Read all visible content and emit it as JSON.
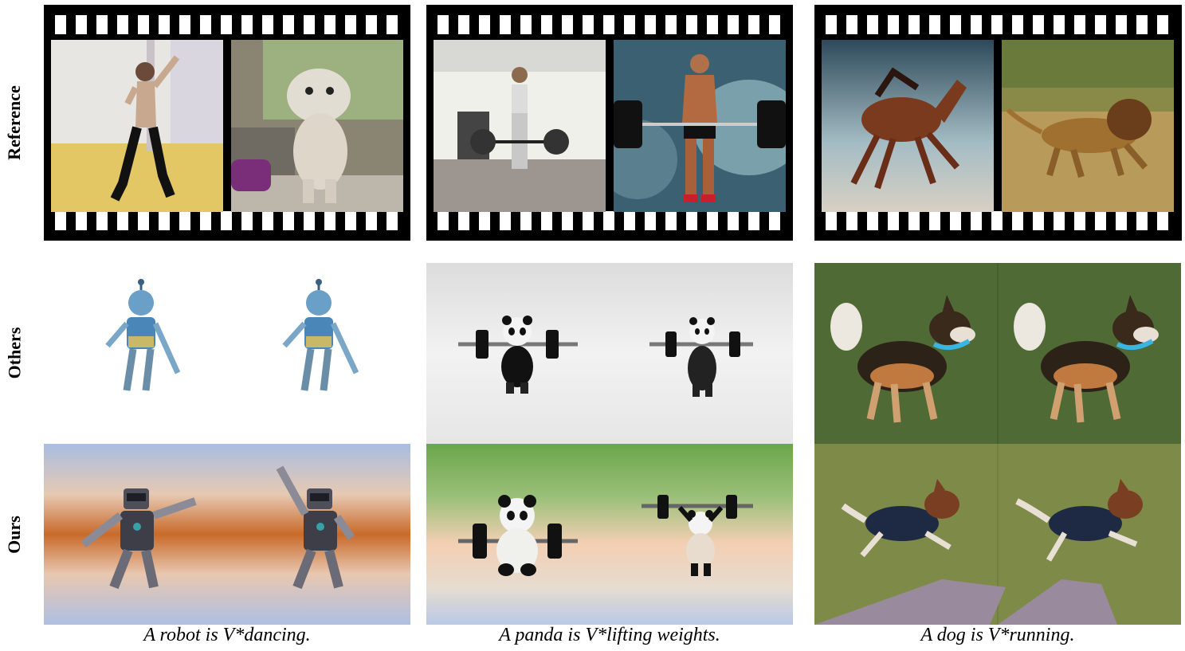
{
  "row_labels": {
    "reference": "Reference",
    "others": "Others",
    "ours": "Ours"
  },
  "columns": [
    {
      "caption": "A robot is V*dancing.",
      "reference_frames": [
        "man dancing in studio",
        "fluffy toy dog dancing in living room"
      ],
      "others": "blue robot figure, two frames",
      "ours": "grey robot dancing, two frames"
    },
    {
      "caption": "A panda is V*lifting weights.",
      "reference_frames": [
        "woman deadlifting barbell in gym",
        "muscular man deadlifting barbell"
      ],
      "others": "panda holding barbell, two frames",
      "ours": "panda lifting barbell, two frames"
    },
    {
      "caption": "A dog is V*running.",
      "reference_frames": [
        "horse galloping in dust",
        "lion running on savanna"
      ],
      "others": "shepherd dog with blue collar, two frames",
      "ours": "dog running on grass, two frames"
    }
  ],
  "colors": {
    "film": "#000000",
    "ours_col1_mid": "#c96a2a",
    "ours_col2_top": "#6aa64a"
  }
}
